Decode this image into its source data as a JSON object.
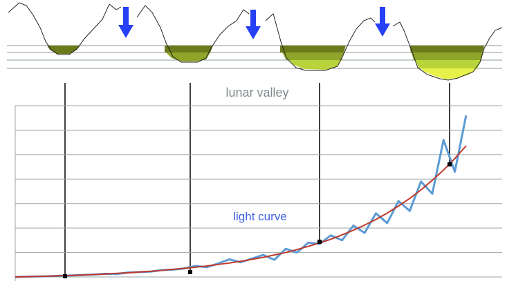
{
  "chart_data": {
    "type": "line",
    "annotations": [
      "lunar valley",
      "light curve"
    ],
    "x": [
      0,
      2.5,
      5,
      7.5,
      10,
      12.5,
      15,
      17.5,
      20,
      22.5,
      25,
      27.5,
      30,
      32.5,
      35,
      37.5,
      40,
      42.5,
      45,
      47.5,
      50,
      52.5,
      55,
      57.5,
      60,
      62.5,
      65,
      67.5,
      70,
      72.5,
      75,
      77.5,
      80,
      82.5,
      85,
      87.5,
      90,
      92.5,
      95,
      97.5,
      100
    ],
    "series": [
      {
        "color": "#5b9bd5",
        "values": [
          0,
          0.01,
          0.02,
          0.03,
          0.05,
          0.06,
          0.08,
          0.1,
          0.13,
          0.12,
          0.18,
          0.2,
          0.22,
          0.28,
          0.3,
          0.35,
          0.45,
          0.4,
          0.55,
          0.72,
          0.6,
          0.75,
          0.9,
          0.7,
          1.15,
          1.0,
          1.4,
          1.35,
          1.7,
          1.5,
          2.1,
          1.8,
          2.6,
          2.2,
          3.1,
          2.7,
          3.9,
          3.4,
          5.6,
          4.3,
          6.6
        ]
      },
      {
        "color": "#c0392b",
        "values": [
          0,
          0.01,
          0.02,
          0.03,
          0.05,
          0.06,
          0.08,
          0.1,
          0.12,
          0.15,
          0.17,
          0.2,
          0.23,
          0.27,
          0.31,
          0.35,
          0.4,
          0.45,
          0.51,
          0.57,
          0.64,
          0.72,
          0.8,
          0.9,
          1.0,
          1.12,
          1.25,
          1.39,
          1.54,
          1.72,
          1.91,
          2.12,
          2.35,
          2.61,
          2.9,
          3.21,
          3.56,
          3.95,
          4.37,
          4.84,
          5.36
        ]
      }
    ],
    "xlim": [
      0,
      108
    ],
    "ylim": [
      0,
      7
    ],
    "yticks": [
      0,
      1,
      2,
      3,
      4,
      5,
      6,
      7
    ],
    "grid": true
  }
}
